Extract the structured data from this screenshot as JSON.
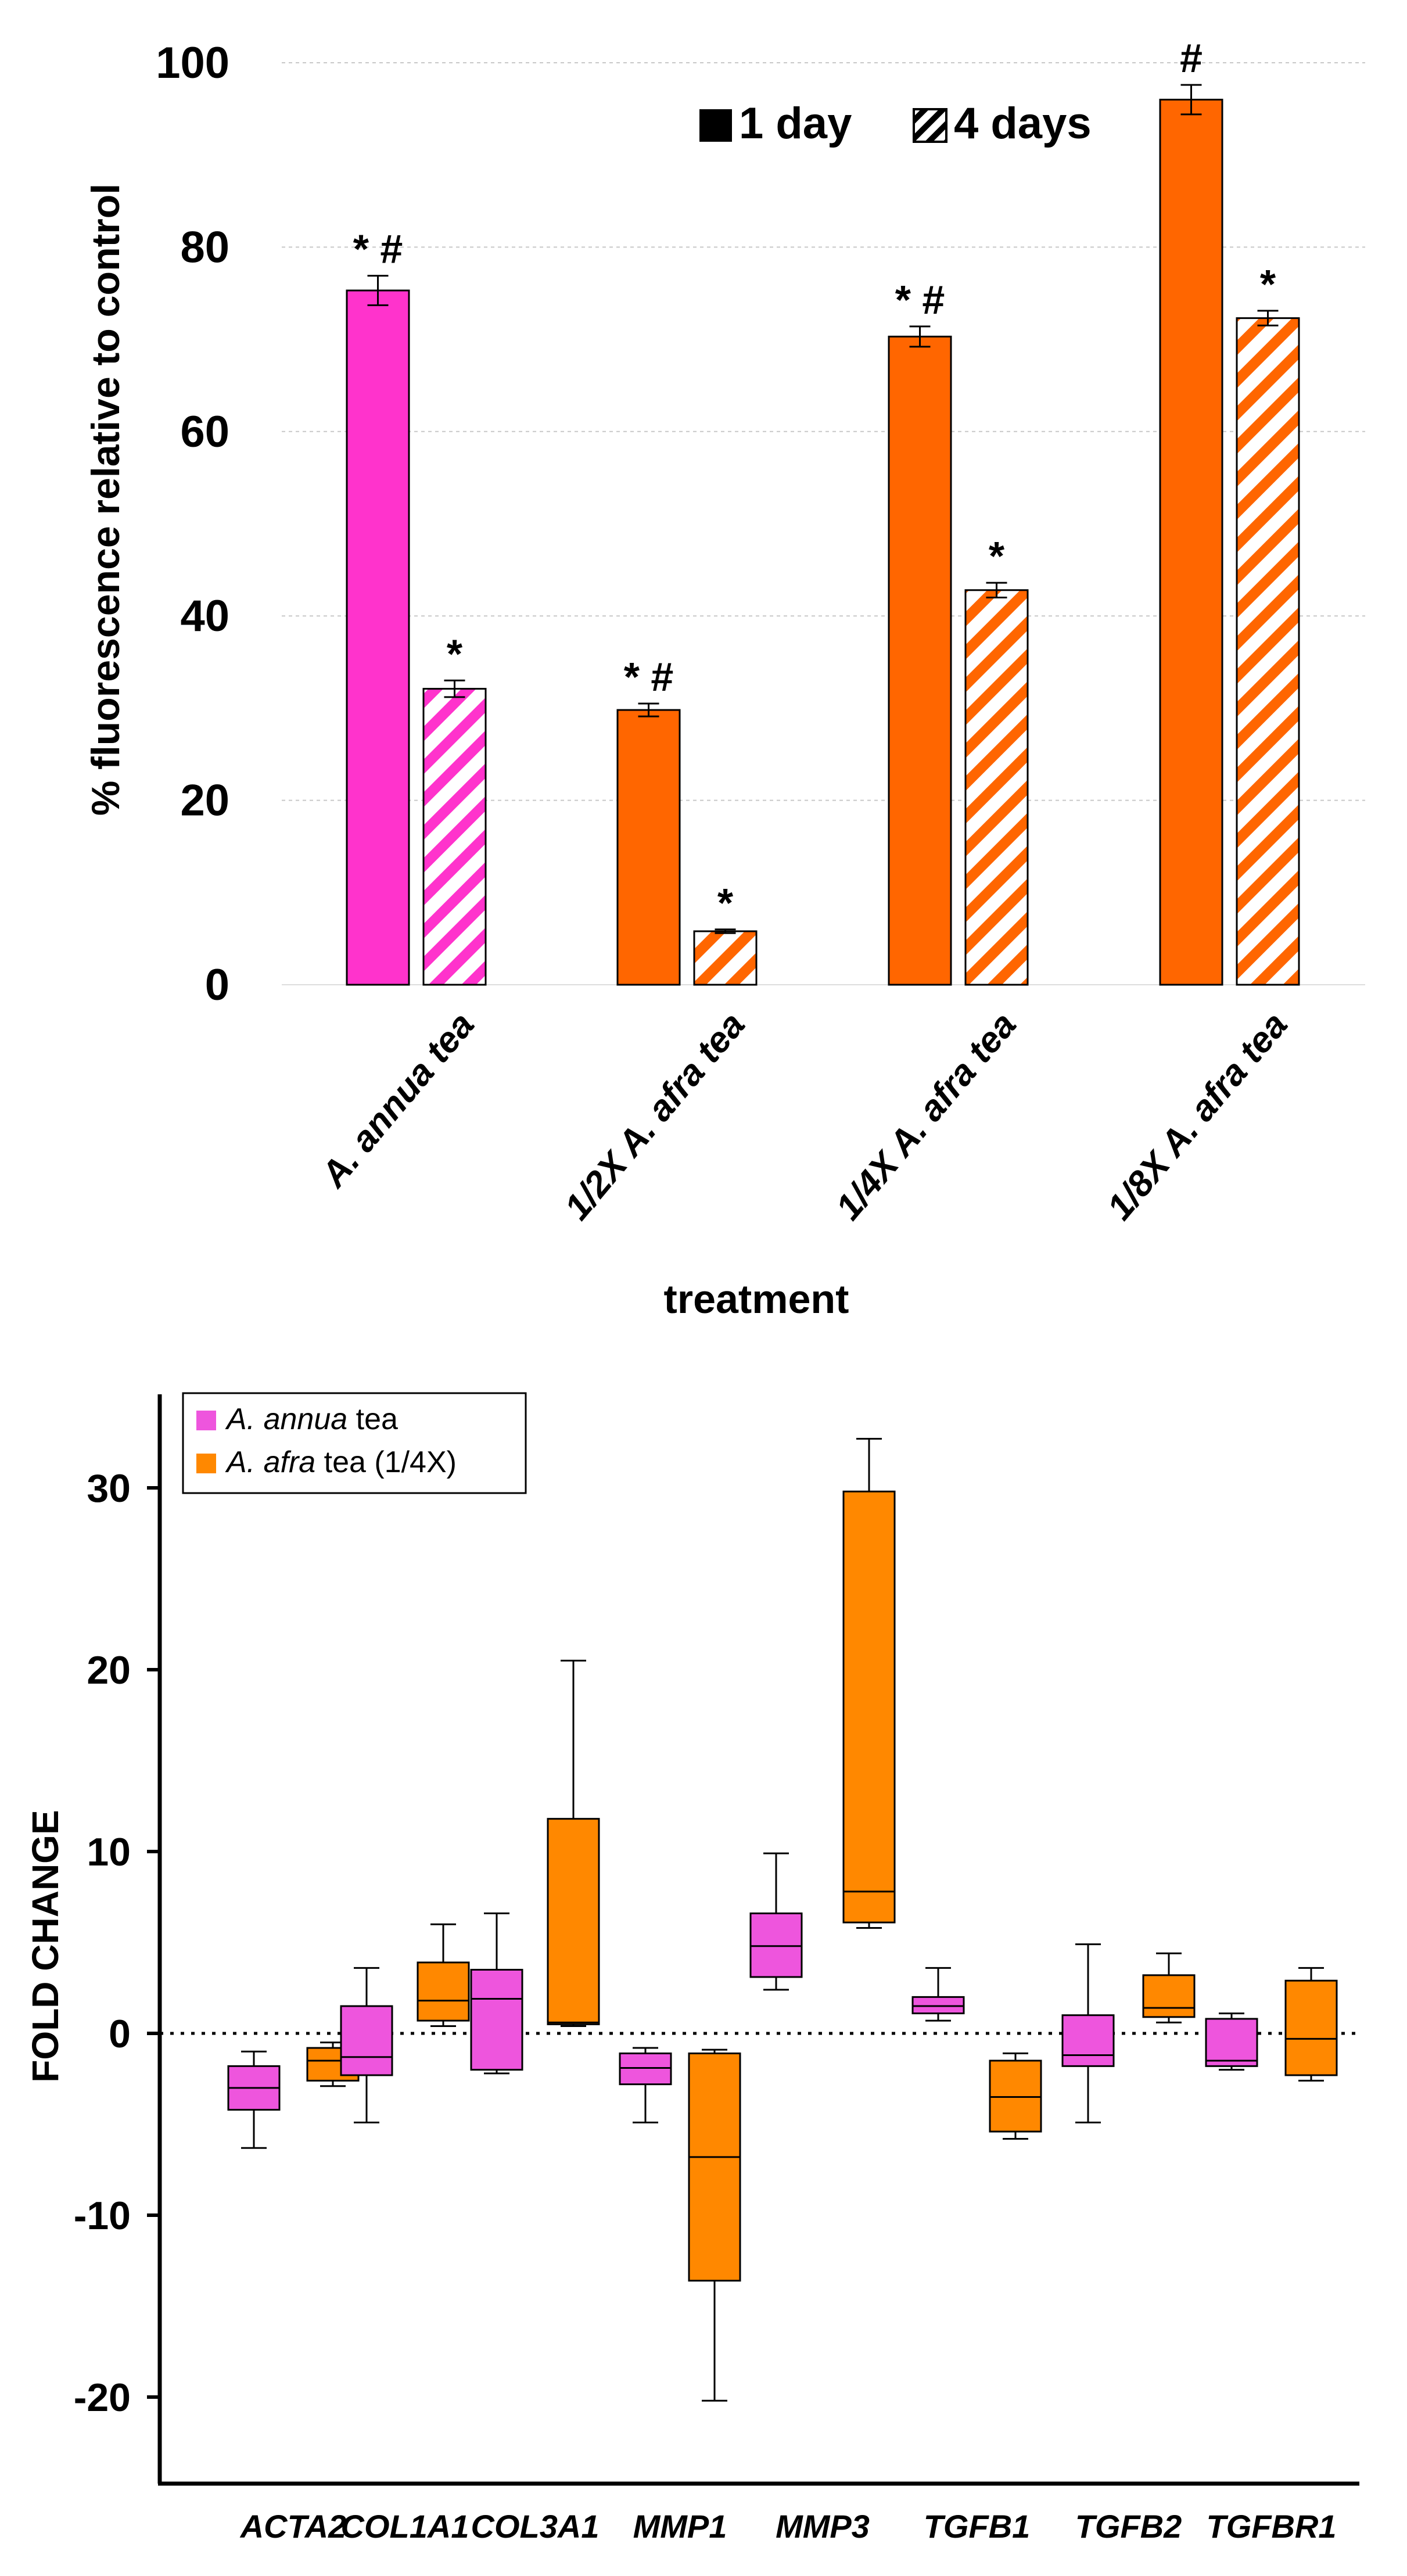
{
  "chart_data": [
    {
      "type": "bar",
      "ylabel": "% fluorescence relative to control",
      "xlabel": "treatment",
      "ylim": [
        0,
        100
      ],
      "yticks": [
        "0",
        "20",
        "40",
        "60",
        "80",
        "100"
      ],
      "grid": true,
      "legend_position": "top-right",
      "legend": [
        {
          "label": "1 day",
          "style": "solid"
        },
        {
          "label": "4 days",
          "style": "hatched"
        }
      ],
      "categories": [
        "A. annua tea",
        "1/2X A. afra tea",
        "1/4X A. afra tea",
        "1/8X A. afra tea"
      ],
      "series": [
        {
          "name": "1 day",
          "values": [
            75.3,
            29.8,
            70.3,
            96.0
          ],
          "errors": [
            1.6,
            0.7,
            1.1,
            1.6
          ],
          "annotations": [
            "* #",
            "* #",
            "* #",
            "#"
          ]
        },
        {
          "name": "4 days",
          "values": [
            32.1,
            5.8,
            42.8,
            72.3
          ],
          "errors": [
            0.9,
            0.2,
            0.8,
            0.8
          ],
          "annotations": [
            "*",
            "*",
            "*",
            "*"
          ]
        }
      ],
      "bar_colors": [
        "#ff33cc",
        "#ff6600",
        "#ff6600",
        "#ff6600"
      ]
    },
    {
      "type": "box",
      "ylabel": "FOLD CHANGE",
      "ylim": [
        -25,
        35
      ],
      "yticks": [
        "-20",
        "-10",
        "0",
        "10",
        "20",
        "30"
      ],
      "legend_position": "top-left",
      "legend": [
        {
          "label_italic": "A. annua",
          "label_rest": " tea",
          "color": "#ee55dd"
        },
        {
          "label_italic": "A. afra",
          "label_rest": " tea (1/4X)",
          "color": "#ff8800"
        }
      ],
      "categories": [
        "ACTA2",
        "COL1A1",
        "COL3A1",
        "MMP1",
        "MMP3",
        "TGFB1",
        "TGFB2",
        "TGFBR1"
      ],
      "series": [
        {
          "name": "A. annua tea",
          "boxes": [
            {
              "min": -6.3,
              "q1": -4.2,
              "median": -3.0,
              "q3": -1.8,
              "max": -1.0
            },
            {
              "min": -4.9,
              "q1": -2.3,
              "median": -1.3,
              "q3": 1.5,
              "max": 3.6
            },
            {
              "min": -2.2,
              "q1": -2.0,
              "median": 1.9,
              "q3": 3.5,
              "max": 6.6
            },
            {
              "min": -4.9,
              "q1": -2.8,
              "median": -1.9,
              "q3": -1.1,
              "max": -0.8
            },
            {
              "min": 2.4,
              "q1": 3.1,
              "median": 4.8,
              "q3": 6.6,
              "max": 9.9
            },
            {
              "min": 0.7,
              "q1": 1.1,
              "median": 1.5,
              "q3": 2.0,
              "max": 3.6
            },
            {
              "min": -4.9,
              "q1": -1.8,
              "median": -1.2,
              "q3": 1.0,
              "max": 4.9
            },
            {
              "min": -2.0,
              "q1": -1.8,
              "median": -1.5,
              "q3": 0.8,
              "max": 1.1
            }
          ]
        },
        {
          "name": "A. afra tea (1/4X)",
          "boxes": [
            {
              "min": -2.9,
              "q1": -2.6,
              "median": -1.5,
              "q3": -0.8,
              "max": -0.5
            },
            {
              "min": 0.4,
              "q1": 0.7,
              "median": 1.8,
              "q3": 3.9,
              "max": 6.0
            },
            {
              "min": 0.4,
              "q1": 0.5,
              "median": 0.6,
              "q3": 11.8,
              "max": 20.5
            },
            {
              "min": -20.2,
              "q1": -13.6,
              "median": -6.8,
              "q3": -1.1,
              "max": -0.9
            },
            {
              "min": 5.8,
              "q1": 6.1,
              "median": 7.8,
              "q3": 29.8,
              "max": 32.7
            },
            {
              "min": -5.8,
              "q1": -5.4,
              "median": -3.5,
              "q3": -1.5,
              "max": -1.1
            },
            {
              "min": 0.6,
              "q1": 0.9,
              "median": 1.4,
              "q3": 3.2,
              "max": 4.4
            },
            {
              "min": -2.6,
              "q1": -2.3,
              "median": -0.3,
              "q3": 2.9,
              "max": 3.6
            }
          ]
        }
      ],
      "zero_line": "dotted"
    }
  ]
}
